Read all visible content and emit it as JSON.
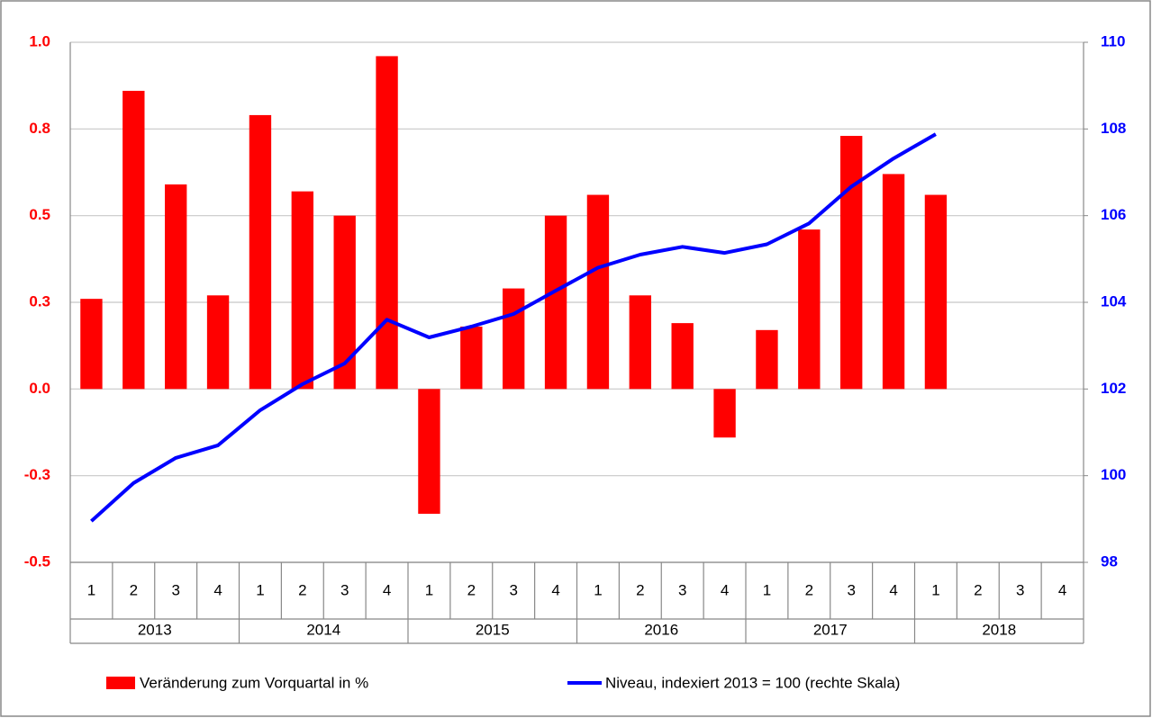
{
  "chart_data": {
    "type": "bar_line",
    "categories": [
      "1",
      "2",
      "3",
      "4",
      "1",
      "2",
      "3",
      "4",
      "1",
      "2",
      "3",
      "4",
      "1",
      "2",
      "3",
      "4",
      "1",
      "2",
      "3",
      "4",
      "1",
      "2",
      "3",
      "4"
    ],
    "years": [
      "2013",
      "2014",
      "2015",
      "2016",
      "2017",
      "2018"
    ],
    "series": [
      {
        "name": "Veränderung zum Vorquartal in %",
        "color": "#ff0000",
        "type": "bar",
        "values": [
          0.26,
          0.86,
          0.59,
          0.27,
          0.79,
          0.57,
          0.5,
          0.96,
          -0.36,
          0.18,
          0.29,
          0.5,
          0.56,
          0.27,
          0.19,
          -0.14,
          0.17,
          0.46,
          0.73,
          0.62,
          0.56,
          null,
          null,
          null
        ]
      },
      {
        "name": "Niveau, indexiert 2013 = 100 (rechte Skala)",
        "color": "#0000ff",
        "type": "line",
        "axis": "y2",
        "values": [
          98.95,
          99.83,
          100.41,
          100.7,
          101.51,
          102.11,
          102.59,
          103.6,
          103.19,
          103.44,
          103.73,
          104.27,
          104.8,
          105.1,
          105.28,
          105.14,
          105.34,
          105.82,
          106.67,
          107.32,
          107.88,
          null,
          null,
          null
        ]
      }
    ],
    "ylim": [
      -0.5,
      1
    ],
    "yticks": [
      {
        "value": 1,
        "label": "1.0"
      },
      {
        "value": 0.75,
        "label": "0.8"
      },
      0.5,
      {
        "value": 0.25,
        "label": "0.3"
      },
      {
        "value": 0,
        "label": "0.0"
      },
      {
        "value": -0.25,
        "label": "-0.3"
      },
      -0.5
    ],
    "y2lim": [
      98,
      110
    ],
    "y2ticks": [
      98,
      100,
      102,
      104,
      106,
      108,
      110
    ],
    "grid": true
  }
}
